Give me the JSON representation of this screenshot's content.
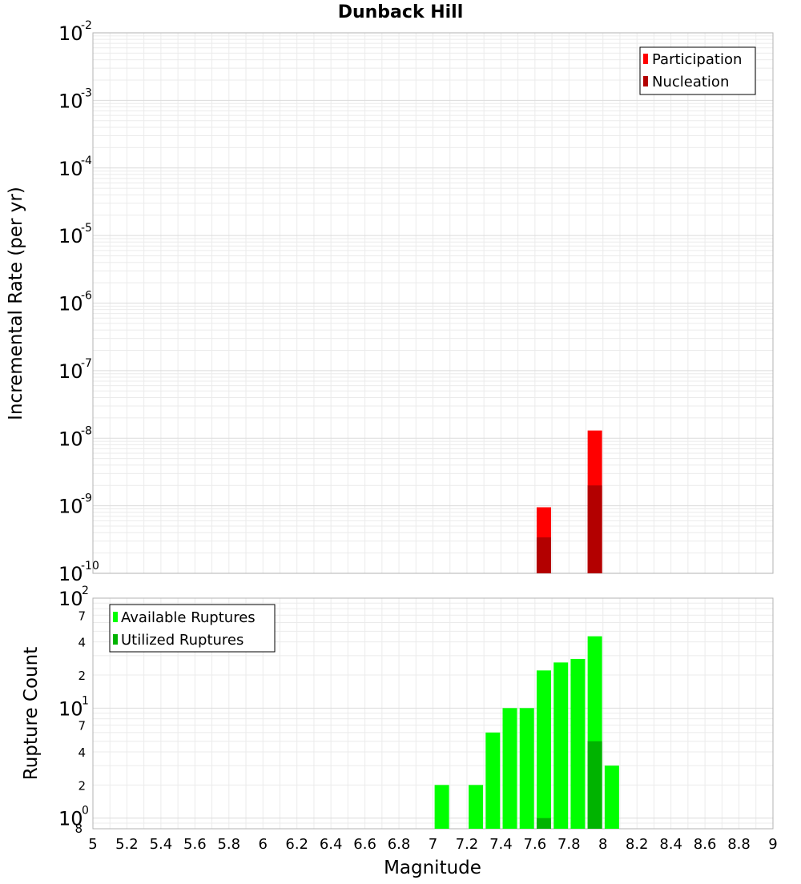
{
  "title": "Dunback Hill",
  "chart_data": [
    {
      "type": "bar",
      "panel": "top",
      "ylabel": "Incremental Rate (per yr)",
      "yscale": "log",
      "ylim": [
        1e-10,
        0.01
      ],
      "y_tick_exponents": [
        "-2",
        "-3",
        "-4",
        "-5",
        "-6",
        "-7",
        "-8",
        "-9",
        "-10"
      ],
      "legend": {
        "position": "top-right",
        "entries": [
          "Participation",
          "Nucleation"
        ]
      },
      "colors": {
        "Participation": "#ff0000",
        "Nucleation": "#b30000"
      },
      "grid": true,
      "series": [
        {
          "name": "Participation",
          "x": [
            7.65,
            7.95
          ],
          "values": [
            9.5e-10,
            1.3e-08
          ]
        },
        {
          "name": "Nucleation",
          "x": [
            7.65,
            7.95
          ],
          "values": [
            3.4e-10,
            2e-09
          ]
        }
      ]
    },
    {
      "type": "bar",
      "panel": "bottom",
      "xlabel": "Magnitude",
      "ylabel": "Rupture Count",
      "yscale": "log",
      "ylim": [
        0.8,
        100
      ],
      "y_major_exponents": [
        "2",
        "1",
        "0"
      ],
      "y_minor_labels": [
        "7",
        "4",
        "2",
        "7",
        "4",
        "2",
        "8"
      ],
      "xlim": [
        5,
        9
      ],
      "x_ticks": [
        "5",
        "5.2",
        "5.4",
        "5.6",
        "5.8",
        "6",
        "6.2",
        "6.4",
        "6.6",
        "6.8",
        "7",
        "7.2",
        "7.4",
        "7.6",
        "7.8",
        "8",
        "8.2",
        "8.4",
        "8.6",
        "8.8",
        "9"
      ],
      "legend": {
        "position": "top-left",
        "entries": [
          "Available Ruptures",
          "Utilized Ruptures"
        ]
      },
      "colors": {
        "Available Ruptures": "#00ff00",
        "Utilized Ruptures": "#00b300"
      },
      "grid": true,
      "series": [
        {
          "name": "Available Ruptures",
          "x": [
            7.05,
            7.25,
            7.35,
            7.45,
            7.55,
            7.65,
            7.75,
            7.85,
            7.95,
            8.05
          ],
          "values": [
            2,
            2,
            6,
            10,
            10,
            22,
            26,
            28,
            45,
            3
          ]
        },
        {
          "name": "Utilized Ruptures",
          "x": [
            7.65,
            7.95
          ],
          "values": [
            1,
            5
          ]
        }
      ]
    }
  ]
}
